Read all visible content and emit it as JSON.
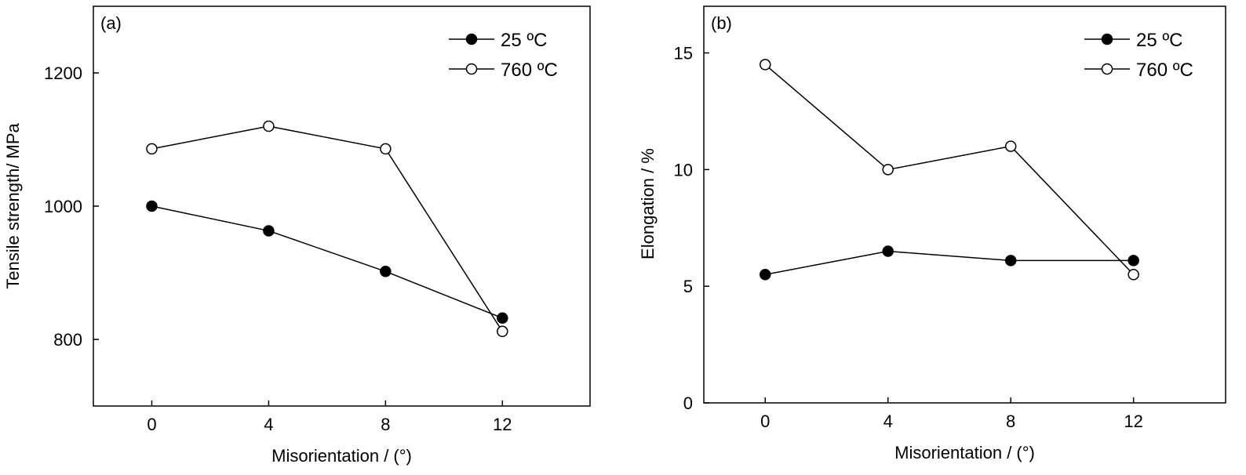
{
  "chart_data": [
    {
      "type": "line",
      "panel_label": "(a)",
      "xlabel": "Misorientation / (°)",
      "ylabel": "Tensile strength/ MPa",
      "x": [
        0,
        4,
        8,
        12
      ],
      "xlim": [
        -2,
        15
      ],
      "ylim": [
        700,
        1300
      ],
      "xticks": [
        0,
        4,
        8,
        12
      ],
      "yticks": [
        800,
        1000,
        1200
      ],
      "legend_position": "top-right",
      "series": [
        {
          "name": "25 ºC",
          "marker": "filled-circle",
          "values": [
            1000,
            963,
            902,
            832
          ]
        },
        {
          "name": "760 ºC",
          "marker": "open-circle",
          "values": [
            1086,
            1120,
            1086,
            812
          ]
        }
      ]
    },
    {
      "type": "line",
      "panel_label": "(b)",
      "xlabel": "Misorientation / (°)",
      "ylabel": "Elongation / %",
      "x": [
        0,
        4,
        8,
        12
      ],
      "xlim": [
        -2,
        15
      ],
      "ylim": [
        0,
        17
      ],
      "xticks": [
        0,
        4,
        8,
        12
      ],
      "yticks": [
        0,
        5,
        10,
        15
      ],
      "legend_position": "top-right",
      "series": [
        {
          "name": "25 ºC",
          "marker": "filled-circle",
          "values": [
            5.5,
            6.5,
            6.1,
            6.1
          ]
        },
        {
          "name": "760 ºC",
          "marker": "open-circle",
          "values": [
            14.5,
            10.0,
            11.0,
            5.5
          ]
        }
      ]
    }
  ]
}
